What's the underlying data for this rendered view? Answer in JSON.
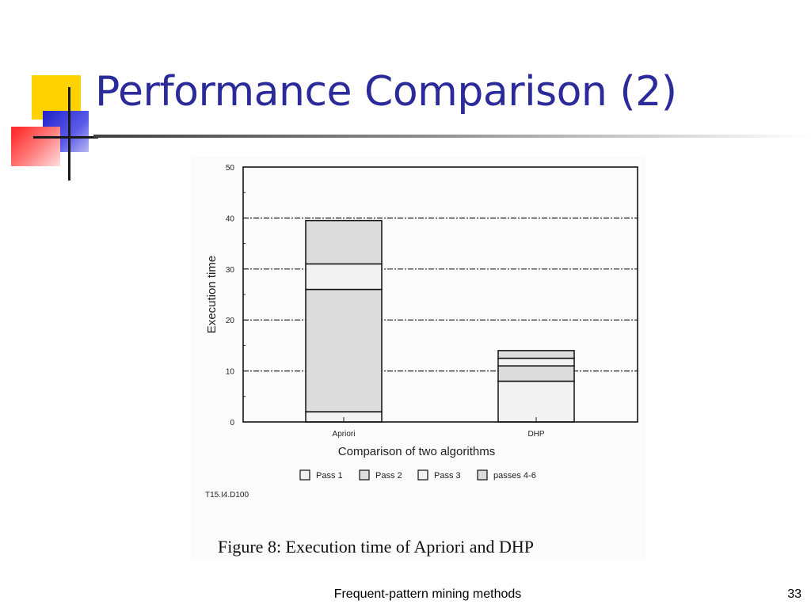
{
  "slide": {
    "title": "Performance Comparison (2)",
    "footer": "Frequent-pattern mining methods",
    "page_number": "33"
  },
  "colors": {
    "title": "#2a2a9a",
    "accent_yellow": "#ffd200",
    "accent_blue": "#2020c8",
    "accent_red": "#ff3030",
    "bar_fill": "#dcdcdc",
    "bar_fill_light": "#f2f2f2"
  },
  "chart_data": {
    "type": "bar",
    "stacked": true,
    "categories": [
      "Apriori",
      "DHP"
    ],
    "series": [
      {
        "name": "Pass 1",
        "values": [
          2,
          8
        ]
      },
      {
        "name": "Pass 2",
        "values": [
          24,
          3
        ]
      },
      {
        "name": "Pass 3",
        "values": [
          5,
          1.5
        ]
      },
      {
        "name": "passes 4-6",
        "values": [
          8.5,
          1.5
        ]
      }
    ],
    "xlabel": "Comparison of two algorithms",
    "ylabel": "Execution time",
    "ylim": [
      0,
      50
    ],
    "yticks": [
      0,
      10,
      20,
      30,
      40,
      50
    ],
    "grid": true,
    "legend_position": "bottom",
    "annotation": "T15.I4.D100",
    "caption": "Figure 8:  Execution time of Apriori and DHP"
  }
}
